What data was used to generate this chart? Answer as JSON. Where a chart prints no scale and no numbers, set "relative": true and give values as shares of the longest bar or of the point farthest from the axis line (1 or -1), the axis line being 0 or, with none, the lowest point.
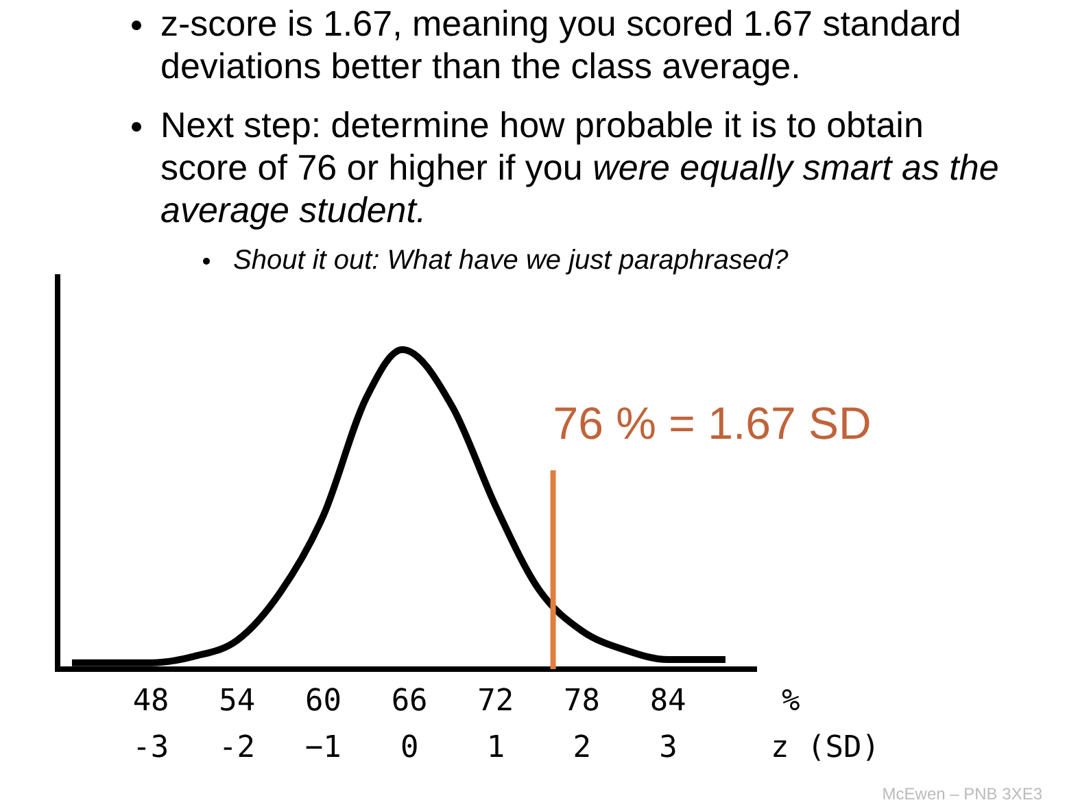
{
  "chart_data": {
    "type": "line",
    "relative": true,
    "x": [
      42.5,
      48,
      51,
      54,
      57,
      60,
      63,
      65.5,
      69,
      72,
      75,
      78,
      81,
      84,
      88
    ],
    "series": [
      {
        "color": "#000000",
        "values": [
          0.02,
          0.02,
          0.04,
          0.09,
          0.24,
          0.48,
          0.85,
          1,
          0.82,
          0.51,
          0.25,
          0.12,
          0.06,
          0.03,
          0.03
        ]
      }
    ],
    "xlim": [
      41.5,
      90.2
    ],
    "xticks": [
      48,
      54,
      60,
      66,
      72,
      78,
      84
    ],
    "xlabel": "%",
    "x2lim": [
      -4.08,
      4.03
    ],
    "x2ticks": [
      -3,
      -2,
      {
        "value": -1,
        "label": "−1"
      },
      0,
      1,
      2,
      3
    ],
    "x2label": "z (SD)",
    "line_style": "solid",
    "grid": false,
    "ref_lines": [
      {
        "axis": "x",
        "value": 76,
        "label": "76 % = 1.67 SD",
        "color": "#e0803f"
      }
    ],
    "annotations": [
      "z-score is 1.67, meaning you scored 1.67 standard deviations better than the class average.",
      "Next step: determine how probable it is to obtain score of 76 or higher if you",
      "were equally smart as the average student.",
      "Shout it out: What have we just paraphrased?",
      "McEwen – PNB 3XE3"
    ]
  }
}
